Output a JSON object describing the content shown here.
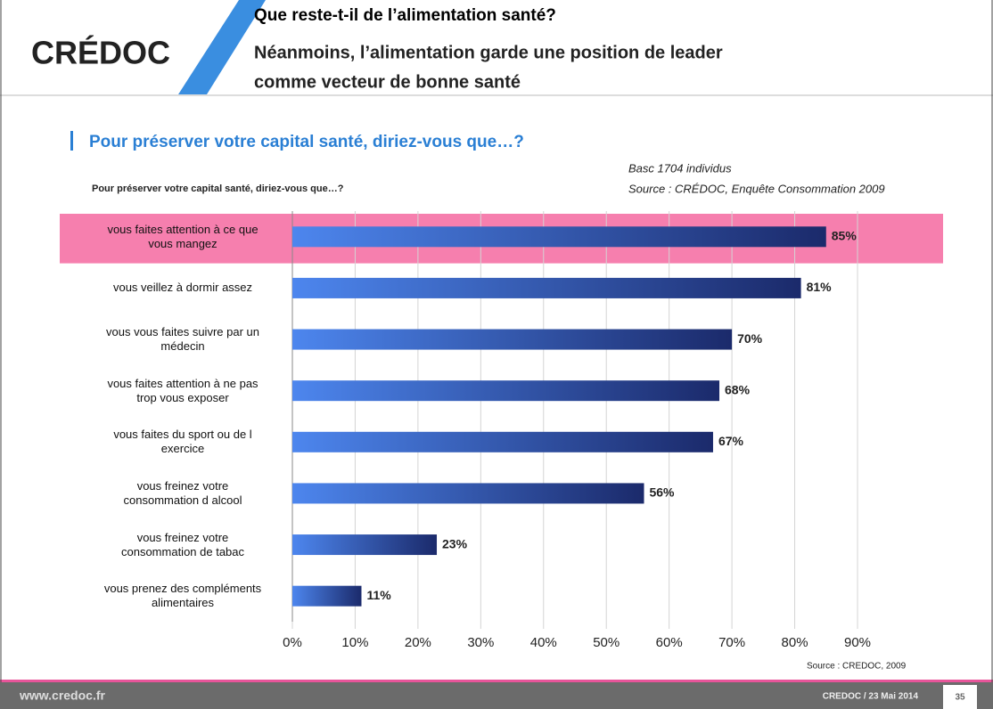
{
  "slide": {
    "logo": "CRÉDOC",
    "title": "Que reste-t-il de l’alimentation santé?",
    "subtitle_lines": [
      "Néanmoins, l’alimentation garde une position de leader",
      "comme vecteur de bonne santé"
    ],
    "heading": "Pour préserver votre capital santé, diriez-vous que…?",
    "footer_url": "www.credoc.fr",
    "footer_event": "CREDOC / 23 Mai 2014",
    "page_number": "35"
  },
  "chart_data": {
    "type": "bar",
    "orientation": "horizontal",
    "title": "Pour préserver votre capital santé, diriez-vous que…?",
    "notes": [
      "Basc 1704 individus",
      "Source : CRÉDOC, Enquête Consommation 2009"
    ],
    "source": "Source : CREDOC, 2009",
    "categories": [
      "vous faites attention à ce que\nvous mangez",
      "vous veillez à dormir assez",
      "vous vous faites suivre par un\nmédecin",
      "vous faites attention à ne pas\ntrop vous exposer",
      "vous faites du sport ou de l\nexercice",
      "vous freinez votre\nconsommation d alcool",
      "vous freinez votre\nconsommation de tabac",
      "vous prenez des compléments\nalimentaires"
    ],
    "values": [
      85,
      81,
      70,
      68,
      67,
      56,
      23,
      11
    ],
    "value_labels": [
      "85%",
      "81%",
      "70%",
      "68%",
      "67%",
      "56%",
      "23%",
      "11%"
    ],
    "color": [
      "#4d86ee",
      "#1b2a6b"
    ],
    "highlight_color": "#f67fae",
    "xlim": [
      0,
      90
    ],
    "xticks": [
      {
        "value": 0,
        "label": "0%"
      },
      {
        "value": 10,
        "label": "10%"
      },
      {
        "value": 20,
        "label": "20%"
      },
      {
        "value": 30,
        "label": "30%"
      },
      {
        "value": 40,
        "label": "40%"
      },
      {
        "value": 50,
        "label": "50%"
      },
      {
        "value": 60,
        "label": "60%"
      },
      {
        "value": 70,
        "label": "70%"
      },
      {
        "value": 80,
        "label": "80%"
      },
      {
        "value": 90,
        "label": "90%"
      }
    ],
    "grid": true
  }
}
